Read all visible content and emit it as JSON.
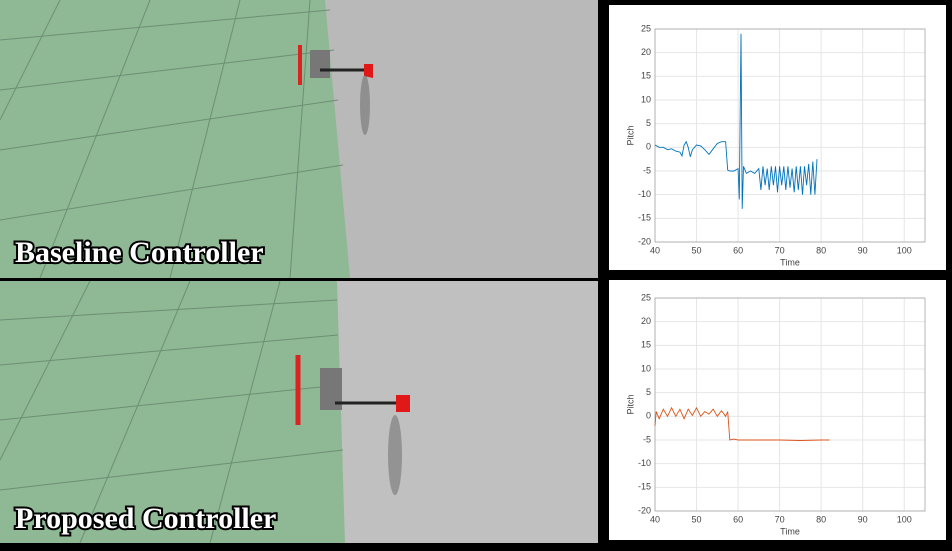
{
  "panels": [
    {
      "label": "Baseline Controller"
    },
    {
      "label": "Proposed Controller"
    }
  ],
  "chart_data": [
    {
      "type": "line",
      "xlabel": "Time",
      "ylabel": "Pitch",
      "xlim": [
        40,
        105
      ],
      "ylim": [
        -20,
        25
      ],
      "xticks": [
        40,
        50,
        60,
        70,
        80,
        90,
        100
      ],
      "yticks": [
        -20,
        -15,
        -10,
        -5,
        0,
        5,
        10,
        15,
        20,
        25
      ],
      "grid": true,
      "color": "#0072bd",
      "series": [
        {
          "color": "#0072bd",
          "x": [
            40,
            41,
            42,
            43,
            44,
            45,
            46,
            46.5,
            47,
            47.5,
            48,
            48.5,
            49,
            50,
            51,
            52,
            53,
            54,
            55,
            56,
            57,
            57.5,
            58,
            59,
            60,
            60.3,
            60.7,
            61,
            61.3,
            62,
            63,
            64,
            65,
            65.5,
            66,
            66.5,
            67,
            67.5,
            68,
            68.5,
            69,
            69.5,
            70,
            70.5,
            71,
            71.5,
            72,
            72.5,
            73,
            73.5,
            74,
            74.5,
            75,
            75.5,
            76,
            76.5,
            77,
            77.5,
            78,
            78.5,
            79
          ],
          "values": [
            0.5,
            0,
            0,
            -0.5,
            -0.3,
            -0.8,
            -1,
            -1.8,
            0.5,
            1.2,
            0,
            -2,
            -0.5,
            0.5,
            0.3,
            -0.5,
            -1.5,
            -0.3,
            0.8,
            1.2,
            1.2,
            -4.8,
            -5,
            -5,
            -4.5,
            -11,
            24,
            -13,
            -4,
            -5.5,
            -5,
            -5.5,
            -4.5,
            -9,
            -4,
            -8,
            -4.5,
            -9,
            -4,
            -8,
            -4,
            -9.5,
            -4,
            -8,
            -4,
            -9,
            -4,
            -8.5,
            -4.5,
            -9.5,
            -4,
            -9,
            -4,
            -10,
            -4,
            -8,
            -3.5,
            -10,
            -3,
            -10,
            -2.5
          ]
        }
      ]
    },
    {
      "type": "line",
      "xlabel": "Time",
      "ylabel": "Pitch",
      "xlim": [
        40,
        105
      ],
      "ylim": [
        -20,
        25
      ],
      "xticks": [
        40,
        50,
        60,
        70,
        80,
        90,
        100
      ],
      "yticks": [
        -20,
        -15,
        -10,
        -5,
        0,
        5,
        10,
        15,
        20,
        25
      ],
      "grid": true,
      "color": "#d95319",
      "series": [
        {
          "color": "#d95319",
          "x": [
            40,
            40.3,
            41,
            42,
            43,
            44,
            45,
            46,
            47,
            48,
            49,
            50,
            51,
            52,
            53,
            54,
            55,
            56,
            57,
            57.5,
            58,
            59,
            60,
            65,
            70,
            75,
            80,
            82
          ],
          "values": [
            -2,
            1,
            -0.5,
            1.5,
            0,
            1.8,
            0,
            1.5,
            -0.5,
            1.5,
            0.2,
            1.8,
            0,
            1,
            0.5,
            1.5,
            0,
            1.2,
            0,
            1,
            -5,
            -4.8,
            -5,
            -5,
            -5,
            -5.1,
            -5,
            -5
          ]
        }
      ]
    }
  ]
}
